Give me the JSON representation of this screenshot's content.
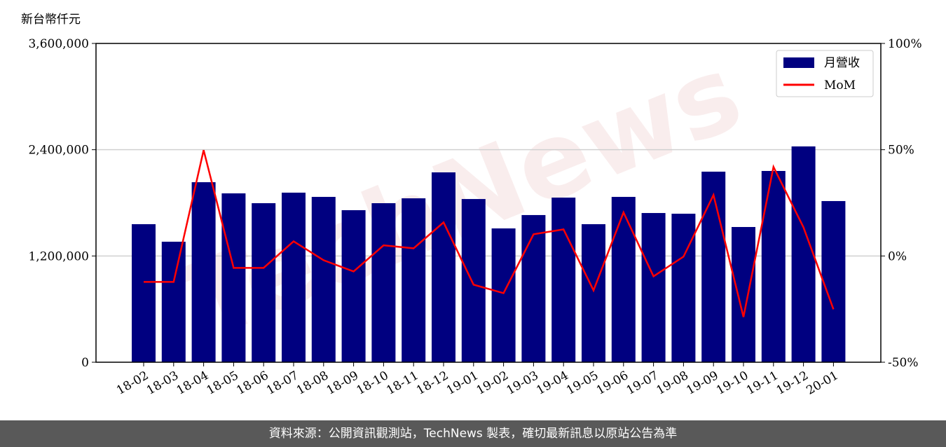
{
  "chart_data": {
    "type": "bar-line",
    "y_label": "新台幣仟元",
    "watermark": "TechNews",
    "categories": [
      "18-02",
      "18-03",
      "18-04",
      "18-05",
      "18-06",
      "18-07",
      "18-08",
      "18-09",
      "18-10",
      "18-11",
      "18-12",
      "19-01",
      "19-02",
      "19-03",
      "19-04",
      "19-05",
      "19-06",
      "19-07",
      "19-08",
      "19-09",
      "19-10",
      "19-11",
      "19-12",
      "20-01"
    ],
    "series": [
      {
        "name": "月營收",
        "color": "#000080",
        "type": "bar",
        "values": [
          1559000,
          1361000,
          2033000,
          1907000,
          1796000,
          1915000,
          1867000,
          1717000,
          1796000,
          1851000,
          2144000,
          1843000,
          1511000,
          1662000,
          1859000,
          1559000,
          1867000,
          1685000,
          1677000,
          2152000,
          1527000,
          2160000,
          2437000,
          1820000
        ]
      },
      {
        "name": "MoM",
        "color": "#ff0000",
        "type": "line",
        "axis": "y2",
        "values": [
          -12.2,
          -12.2,
          49.8,
          -5.6,
          -5.6,
          6.9,
          -2.0,
          -7.3,
          5.0,
          3.6,
          15.8,
          -13.5,
          -17.5,
          10.2,
          12.5,
          -16.2,
          20.5,
          -9.6,
          -0.3,
          28.7,
          -28.7,
          41.9,
          13.5,
          -25.1
        ]
      }
    ],
    "ylim": [
      0,
      3600000
    ],
    "yticks": [
      0,
      {
        "value": 1200000,
        "label": "1,200,000"
      },
      {
        "value": 2400000,
        "label": "2,400,000"
      },
      {
        "value": 3600000,
        "label": "3,600,000"
      }
    ],
    "y2lim": [
      -50,
      100
    ],
    "y2ticks": [
      {
        "value": -50,
        "label": "-50%"
      },
      {
        "value": 0,
        "label": "0%"
      },
      {
        "value": 50,
        "label": "50%"
      },
      {
        "value": 100,
        "label": "100%"
      }
    ],
    "grid": true,
    "legend": "upper right"
  },
  "footer": "資料來源：公開資訊觀測站，TechNews 製表，確切最新訊息以原站公告為準"
}
